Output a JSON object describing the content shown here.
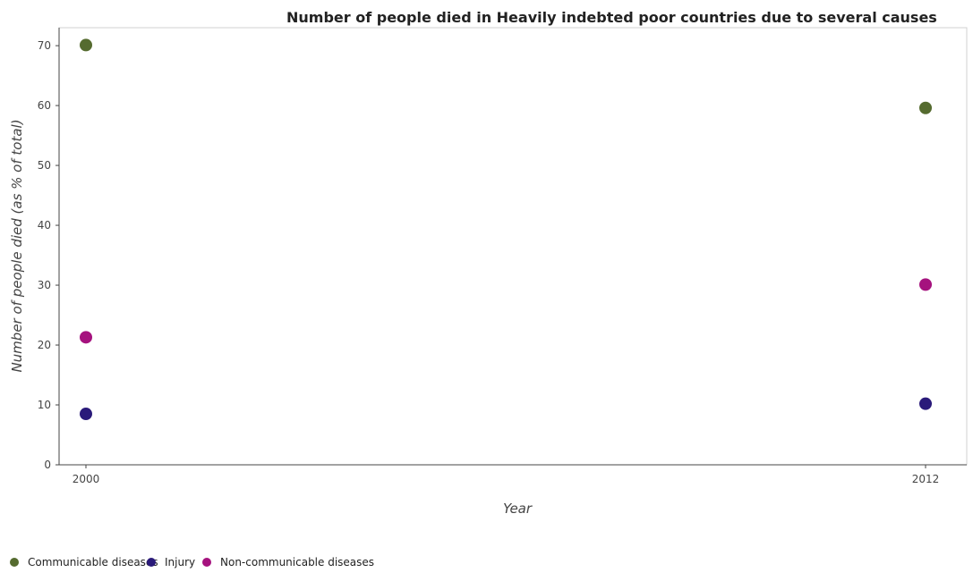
{
  "chart_data": {
    "type": "scatter",
    "title": "Number of people died in Heavily indebted poor countries due to several causes",
    "xlabel": "Year",
    "ylabel": "Number of people died (as % of total)",
    "categories": [
      "2000",
      "2012"
    ],
    "yticks": [
      "0",
      "10",
      "20",
      "30",
      "40",
      "50",
      "60",
      "70"
    ],
    "ylim": [
      0,
      73
    ],
    "grid": false,
    "legend_position": "bottom-left",
    "series": [
      {
        "name": "Communicable diseases",
        "color": "#556b2f",
        "values": [
          70.1,
          59.6
        ]
      },
      {
        "name": "Injury",
        "color": "#2a1a7a",
        "values": [
          8.5,
          10.2
        ]
      },
      {
        "name": "Non-communicable diseases",
        "color": "#a5127e",
        "values": [
          21.3,
          30.1
        ]
      }
    ]
  }
}
